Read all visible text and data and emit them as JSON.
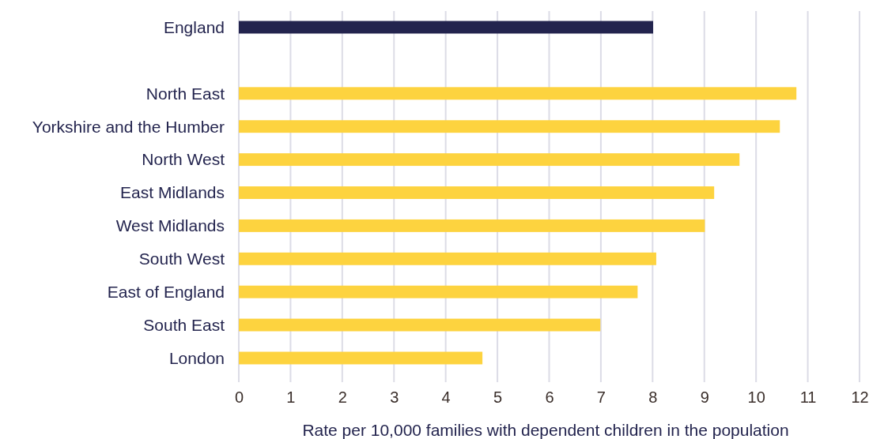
{
  "chart_data": {
    "type": "bar",
    "orientation": "horizontal",
    "xlabel": "Rate per 10,000 families with dependent children in the population",
    "categories": [
      "England",
      null,
      "North East",
      "Yorkshire and the Humber",
      "North West",
      "East Midlands",
      "West Midlands",
      "South West",
      "East of England",
      "South East",
      "London"
    ],
    "values": [
      8.01,
      null,
      10.78,
      10.46,
      9.68,
      9.19,
      9.01,
      8.07,
      7.71,
      6.99,
      4.71
    ],
    "colors": [
      "#23244e",
      null,
      "#fdd33f",
      "#fdd33f",
      "#fdd33f",
      "#fdd33f",
      "#fdd33f",
      "#fdd33f",
      "#fdd33f",
      "#fdd33f",
      "#fdd33f"
    ],
    "xlim": [
      0,
      12
    ],
    "xticks": [
      0,
      1,
      2,
      3,
      4,
      5,
      6,
      7,
      8,
      9,
      10,
      11,
      12
    ],
    "grid": "x"
  }
}
